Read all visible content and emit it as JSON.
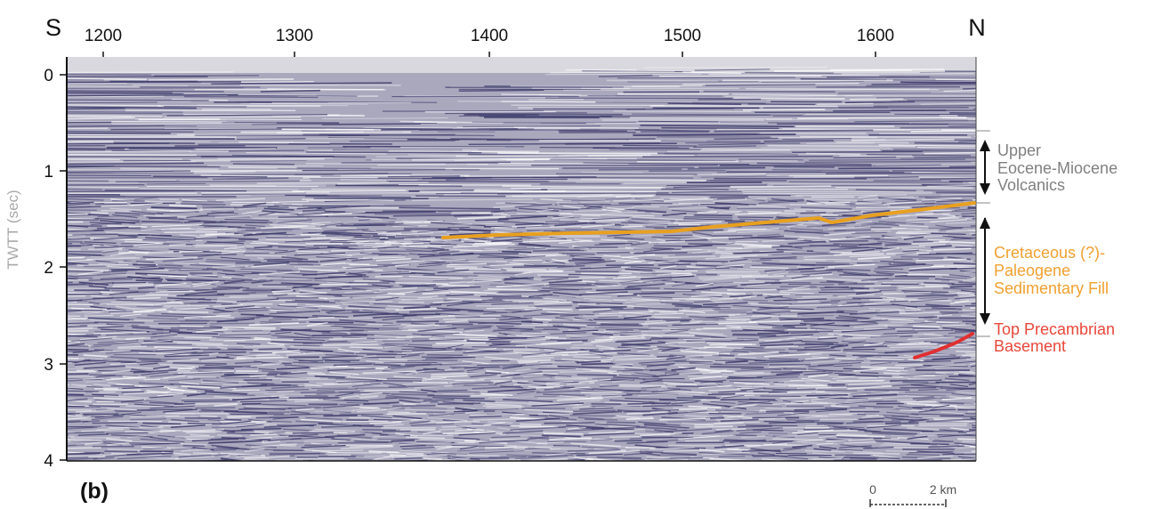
{
  "panel_label": "(b)",
  "direction": {
    "left": "S",
    "right": "N"
  },
  "x_axis": {
    "ticks": [
      "1200",
      "1300",
      "1400",
      "1500",
      "1600"
    ]
  },
  "y_axis": {
    "label": "TWTT (sec)",
    "ticks": [
      "0",
      "1",
      "2",
      "3",
      "4"
    ]
  },
  "annotations": {
    "volcanics": {
      "lines": [
        "Upper",
        "Eocene-Miocene",
        "Volcanics"
      ],
      "color": "#808080"
    },
    "sedimentary_fill": {
      "lines": [
        "Cretaceous (?)-",
        "Paleogene",
        "Sedimentary Fill"
      ],
      "color": "#f0a030"
    },
    "basement": {
      "lines": [
        "Top Precambrian",
        "Basement"
      ],
      "color": "#e8473a"
    }
  },
  "horizons": {
    "sedimentary_base_color": "#e8a020",
    "basement_color": "#e03030"
  },
  "scale_bar": {
    "start": "0",
    "end": "2 km"
  },
  "colors": {
    "seismic_background": "#aaa8bd",
    "seismic_dark": "#3c3a6a",
    "seismic_light": "#ffffff"
  }
}
